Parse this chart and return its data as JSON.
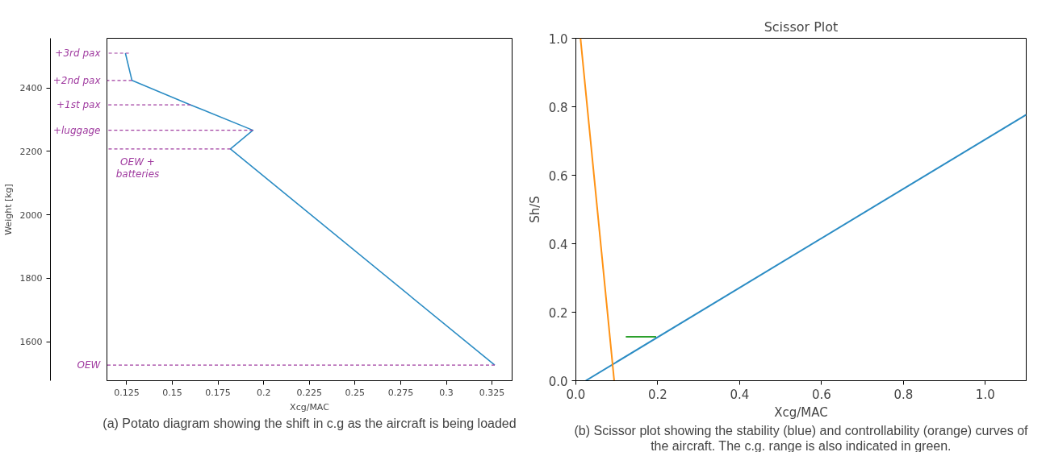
{
  "chart_data": [
    {
      "type": "line",
      "xlabel": "Xcg/MAC",
      "ylabel": "Weight [kg]",
      "x": [
        0.3265,
        0.1818,
        0.1941,
        0.16,
        0.1279,
        0.1243
      ],
      "series": [
        {
          "color": "#2b8cc4",
          "values": [
            1526,
            2208,
            2267,
            2347,
            2424,
            2510
          ]
        },
        {
          "name": "OEW",
          "color": "#a03ca0",
          "line_style": "dashed",
          "x": [
            0.3265,
            0.1142
          ],
          "values": [
            1526,
            1526
          ]
        },
        {
          "name": "OEW + batteries",
          "color": "#a03ca0",
          "line_style": "dashed",
          "x": [
            0.1818,
            0.1142
          ],
          "values": [
            2208,
            2208
          ]
        },
        {
          "name": "+luggage",
          "color": "#a03ca0",
          "line_style": "dashed",
          "x": [
            0.1941,
            0.1142
          ],
          "values": [
            2267,
            2267
          ]
        },
        {
          "name": "+1st pax",
          "color": "#a03ca0",
          "line_style": "dashed",
          "x": [
            0.16,
            0.1142
          ],
          "values": [
            2347,
            2347
          ]
        },
        {
          "name": "+2nd pax",
          "color": "#a03ca0",
          "line_style": "dashed",
          "x": [
            0.1279,
            0.1142
          ],
          "values": [
            2424,
            2424
          ]
        },
        {
          "name": "+3rd pax",
          "color": "#a03ca0",
          "line_style": "dashed",
          "x": [
            0.1262,
            0.1142
          ],
          "values": [
            2510,
            2510
          ]
        }
      ],
      "xlim": [
        0.1142,
        0.336
      ],
      "ylim": [
        1477,
        2557
      ],
      "xticks": [
        0.125,
        0.15,
        0.175,
        0.2,
        0.225,
        0.25,
        0.275,
        0.3,
        0.325
      ],
      "yticks": [
        1600,
        1800,
        2000,
        2200,
        2400
      ],
      "annotations": [
        "(a) Potato diagram showing the shift in c.g as the aircraft is being loaded"
      ]
    },
    {
      "type": "line",
      "title": "Scissor Plot",
      "xlabel": "Xcg/MAC",
      "ylabel": "Sh/S",
      "series": [
        {
          "color": "#2b8cc4",
          "x": [
            0.024,
            1.1
          ],
          "values": [
            0.0,
            0.777
          ]
        },
        {
          "color": "#ff9214",
          "x": [
            0.0113,
            0.0936
          ],
          "values": [
            1.0,
            0.0
          ]
        },
        {
          "color": "#2ca02c",
          "x": [
            0.122,
            0.196
          ],
          "values": [
            0.128,
            0.128
          ]
        }
      ],
      "xlim": [
        0.0,
        1.1
      ],
      "ylim": [
        0.0,
        1.0
      ],
      "xticks": [
        {
          "value": 0.0,
          "label": "0.0"
        },
        0.2,
        0.4,
        0.6,
        0.8,
        {
          "value": 1.0,
          "label": "1.0"
        }
      ],
      "yticks": [
        {
          "value": 0.0,
          "label": "0.0"
        },
        0.2,
        0.4,
        0.6,
        0.8,
        {
          "value": 1.0,
          "label": "1.0"
        }
      ],
      "annotations": [
        "(b) Scissor plot showing the stability (blue) and controllability (orange) curves of the aircraft. The c.g. range is also indicated in green."
      ]
    }
  ]
}
